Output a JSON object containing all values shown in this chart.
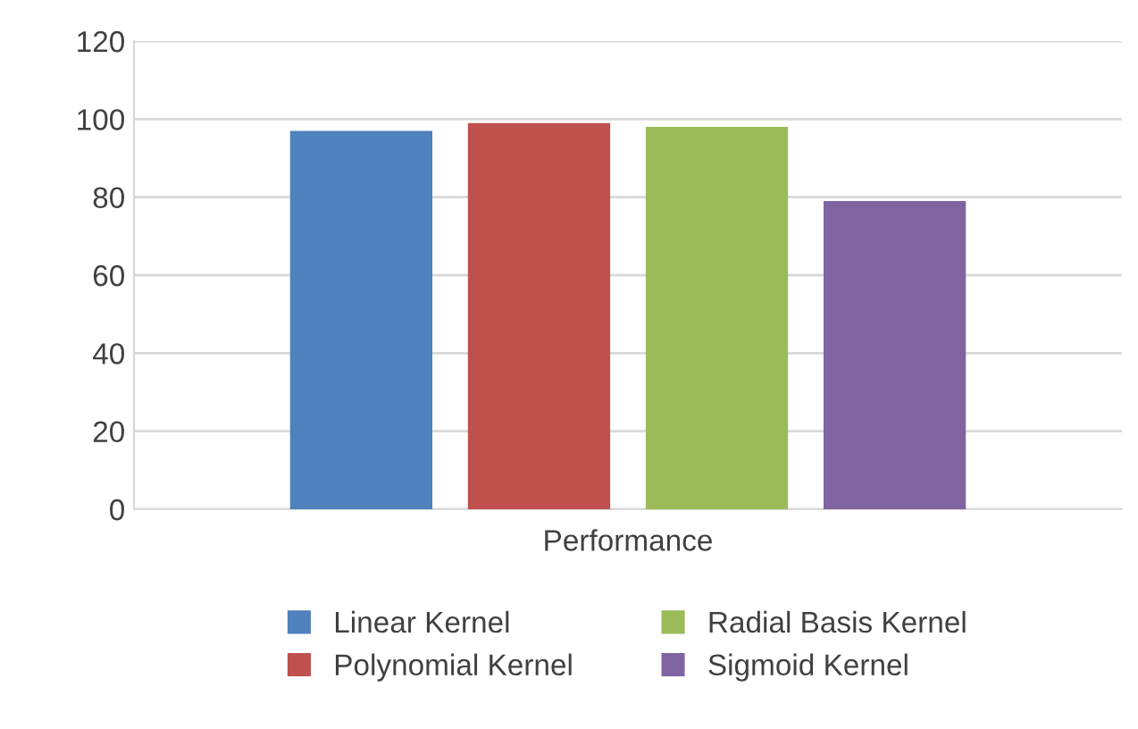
{
  "chart_data": {
    "type": "bar",
    "categories": [
      "Performance"
    ],
    "series": [
      {
        "name": "Linear Kernel",
        "color": "#4f81bd",
        "values": [
          97
        ]
      },
      {
        "name": "Polynomial Kernel",
        "color": "#c0504d",
        "values": [
          99
        ]
      },
      {
        "name": "Radial Basis Kernel",
        "color": "#9bbb59",
        "values": [
          98
        ]
      },
      {
        "name": "Sigmoid Kernel",
        "color": "#8064a2",
        "values": [
          79
        ]
      }
    ],
    "ylim": [
      0,
      120
    ],
    "yticks": [
      0,
      20,
      40,
      60,
      80,
      100,
      120
    ],
    "grid": "y",
    "legend": "bottom"
  }
}
